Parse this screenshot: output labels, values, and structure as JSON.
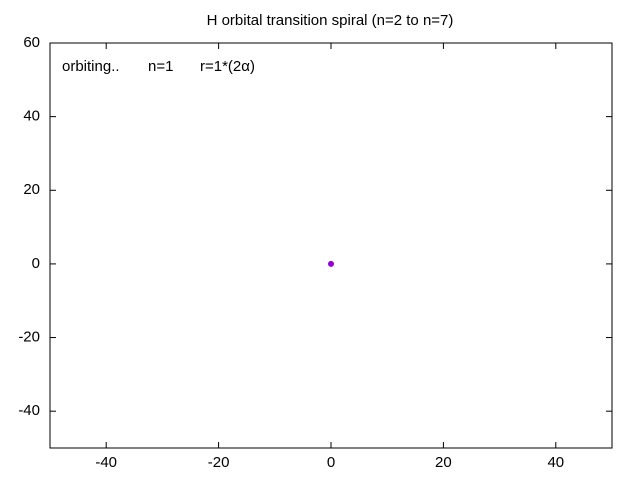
{
  "chart_data": {
    "type": "scatter",
    "title": "H orbital transition spiral (n=2 to n=7)",
    "annotations": [
      "orbiting..",
      "n=1",
      "r=1*(2α)"
    ],
    "series": [
      {
        "color": "#9400d3",
        "x": [
          0
        ],
        "values": [
          0
        ]
      }
    ],
    "xlim": [
      -50,
      50
    ],
    "ylim": [
      -50,
      60
    ],
    "xticks": [
      -40,
      -20,
      0,
      20,
      40
    ],
    "yticks": [
      -40,
      -20,
      0,
      20,
      40,
      60
    ],
    "grid": false
  }
}
